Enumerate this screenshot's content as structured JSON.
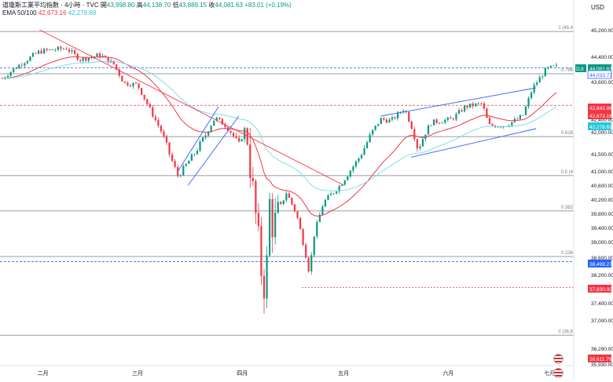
{
  "header": {
    "symbol_line": "道瓊斯工業平均指數 · 4小時 · TVC",
    "open_label": "開",
    "open_value": "43,998.80",
    "high_label": "高",
    "high_value": "44,138.70",
    "low_label": "低",
    "low_value": "43,889.15",
    "close_label": "收",
    "close_value": "44,081.63",
    "change": "+83.01 (+0.19%)",
    "ema_label": "EMA 50/100",
    "ema50_value": "42,673.16",
    "ema100_value": "42,278.69"
  },
  "currency_label": "USD",
  "colors": {
    "up": "#089981",
    "down": "#f23645",
    "ema50": "#f23645",
    "ema100": "#80deea",
    "trend": "#f23645",
    "channel": "#2962ff",
    "dashed_blue": "#2962ff",
    "fib_line": "#787b86"
  },
  "chart_data": {
    "type": "candlestick",
    "title": "道瓊斯工業平均指數 · 4小時 · TVC",
    "y_axis": {
      "range": [
        35930,
        45330
      ],
      "ticks": [
        "45,200.00",
        "44,400.00",
        "43,600.00",
        "42,400.00",
        "42,000.00",
        "41,500.00",
        "41,000.00",
        "40,600.00",
        "40,200.00",
        "39,800.00",
        "39,400.00",
        "39,000.00",
        "38,600.00",
        "38,200.00",
        "37,400.00",
        "37,000.00",
        "36,290.00",
        "35,930.00"
      ]
    },
    "x_axis": {
      "labels": [
        "二月",
        "三月",
        "四月",
        "五月",
        "六月",
        "七月"
      ]
    },
    "fib_levels": [
      {
        "label": "1 (45,4",
        "value": 45150
      },
      {
        "label": "0.786",
        "value": 43850
      },
      {
        "label": "0.618",
        "value": 41890
      },
      {
        "label": "0.5 (4",
        "value": 40870
      },
      {
        "label": "0.382",
        "value": 39870
      },
      {
        "label": "0.236",
        "value": 38620
      },
      {
        "label": "0 (36,6",
        "value": 36620
      }
    ],
    "price_tags": [
      {
        "label": "DJI",
        "value": "44,081.63",
        "kind": "symbol"
      },
      {
        "label": "",
        "value": "44,033.77",
        "kind": "blue"
      },
      {
        "label": "",
        "value": "42,842.98",
        "kind": "red"
      },
      {
        "label": "",
        "value": "42,673.16",
        "kind": "red"
      },
      {
        "label": "",
        "value": "42,278.69",
        "kind": "cyan"
      },
      {
        "label": "",
        "value": "38,499.27",
        "kind": "blue"
      },
      {
        "label": "",
        "value": "37,830.00",
        "kind": "red"
      },
      {
        "label": "",
        "value": "36,611.79",
        "kind": "red"
      }
    ],
    "anchors": [
      [
        "2025-01-20",
        43700
      ],
      [
        "2025-01-24",
        44050
      ],
      [
        "2025-01-28",
        44350
      ],
      [
        "2025-01-31",
        44550
      ],
      [
        "2025-02-04",
        44600
      ],
      [
        "2025-02-08",
        44650
      ],
      [
        "2025-02-12",
        44300
      ],
      [
        "2025-02-18",
        44450
      ],
      [
        "2025-02-22",
        44150
      ],
      [
        "2025-02-25",
        43550
      ],
      [
        "2025-03-01",
        43500
      ],
      [
        "2025-03-05",
        42650
      ],
      [
        "2025-03-10",
        41600
      ],
      [
        "2025-03-13",
        40850
      ],
      [
        "2025-03-17",
        41400
      ],
      [
        "2025-03-21",
        41900
      ],
      [
        "2025-03-24",
        42450
      ],
      [
        "2025-03-27",
        42200
      ],
      [
        "2025-03-31",
        41700
      ],
      [
        "2025-04-02",
        42150
      ],
      [
        "2025-04-04",
        40600
      ],
      [
        "2025-04-07",
        38000
      ],
      [
        "2025-04-08",
        37700
      ],
      [
        "2025-04-09",
        40200
      ],
      [
        "2025-04-10",
        39400
      ],
      [
        "2025-04-14",
        40400
      ],
      [
        "2025-04-17",
        39800
      ],
      [
        "2025-04-21",
        38200
      ],
      [
        "2025-04-22",
        39100
      ],
      [
        "2025-04-25",
        40100
      ],
      [
        "2025-04-30",
        40600
      ],
      [
        "2025-05-05",
        41300
      ],
      [
        "2025-05-12",
        42400
      ],
      [
        "2025-05-15",
        42350
      ],
      [
        "2025-05-19",
        42750
      ],
      [
        "2025-05-21",
        42200
      ],
      [
        "2025-05-23",
        41600
      ],
      [
        "2025-05-27",
        42300
      ],
      [
        "2025-06-02",
        42400
      ],
      [
        "2025-06-06",
        42800
      ],
      [
        "2025-06-11",
        42900
      ],
      [
        "2025-06-13",
        42200
      ],
      [
        "2025-06-18",
        42200
      ],
      [
        "2025-06-23",
        42500
      ],
      [
        "2025-06-26",
        43400
      ],
      [
        "2025-06-30",
        44000
      ],
      [
        "2025-07-03",
        44081.63
      ]
    ],
    "ema50_value": 42673.16,
    "ema100_value": 42278.69,
    "last_close": 44081.63,
    "grid": false,
    "legend": "top-left"
  }
}
